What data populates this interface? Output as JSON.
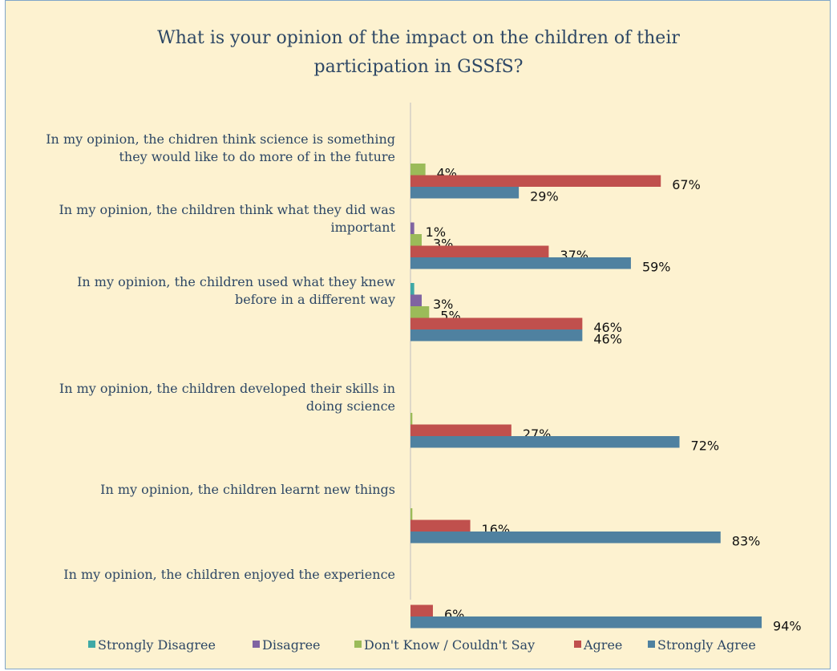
{
  "chart_data": {
    "type": "bar",
    "orientation": "horizontal",
    "title_lines": [
      "What is your opinion of the impact on the children of their",
      "participation in GSSfS?"
    ],
    "categories": [
      {
        "lines": [
          "In my opinion, the chidren think science is something",
          "they would like to do more of in the future"
        ]
      },
      {
        "lines": [
          "In my opinion, the children think what they did was",
          "important"
        ]
      },
      {
        "lines": [
          "In my opinion, the children used what they knew",
          "before in a different way"
        ]
      },
      {
        "lines": [
          "In my opinion, the children developed their skills in",
          "doing science"
        ]
      },
      {
        "lines": [
          "In my opinion, the children learnt new things"
        ]
      },
      {
        "lines": [
          "In my opinion, the children enjoyed the experience"
        ]
      }
    ],
    "series": [
      {
        "name": "Strongly Disagree",
        "color": "#3fa9a6",
        "values": [
          0,
          0,
          1,
          0,
          0,
          0
        ],
        "labels": [
          "",
          "",
          "",
          "",
          "",
          ""
        ]
      },
      {
        "name": "Disagree",
        "color": "#8064a2",
        "values": [
          0,
          1,
          3,
          0,
          0,
          0
        ],
        "labels": [
          "",
          "1%",
          "3%",
          "",
          "",
          ""
        ]
      },
      {
        "name": "Don't Know / Couldn't Say",
        "color": "#9bbb59",
        "values": [
          4,
          3,
          5,
          0.5,
          0.5,
          0
        ],
        "labels": [
          "4%",
          "3%",
          "5%",
          "",
          "",
          ""
        ]
      },
      {
        "name": "Agree",
        "color": "#c0504d",
        "values": [
          67,
          37,
          46,
          27,
          16,
          6
        ],
        "labels": [
          "67%",
          "37%",
          "46%",
          "27%",
          "16%",
          "6%"
        ]
      },
      {
        "name": "Strongly Agree",
        "color": "#4f81a0",
        "values": [
          29,
          59,
          46,
          72,
          83,
          94
        ],
        "labels": [
          "29%",
          "59%",
          "46%",
          "72%",
          "83%",
          "94%"
        ]
      }
    ],
    "xlim": [
      0,
      100
    ],
    "grid": false,
    "legend_position": "bottom"
  }
}
